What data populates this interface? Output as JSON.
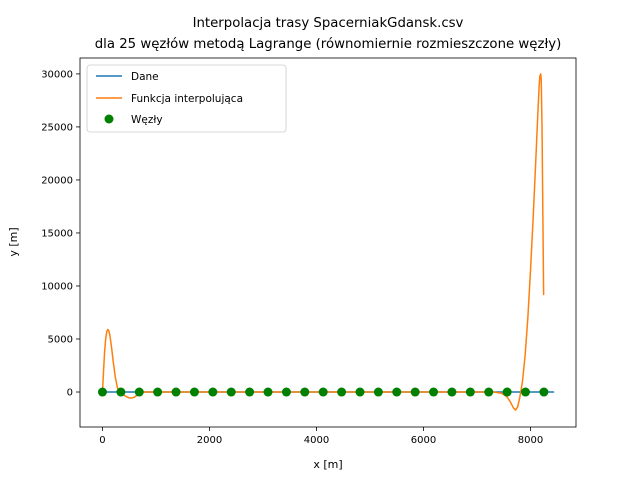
{
  "chart_data": {
    "type": "line",
    "title_lines": [
      "Interpolacja trasy SpacerniakGdansk.csv",
      "dla 25 węzłów metodą  Lagrange (równomiernie rozmieszczone węzły)"
    ],
    "xlabel": "x [m]",
    "ylabel": "y [m]",
    "xlim": [
      -420,
      8850
    ],
    "ylim": [
      -3300,
      31500
    ],
    "x_ticks": [
      0,
      2000,
      4000,
      6000,
      8000
    ],
    "y_ticks": [
      0,
      5000,
      10000,
      15000,
      20000,
      25000,
      30000
    ],
    "grid": false,
    "legend_position": "top-left",
    "series": [
      {
        "name": "Dane",
        "kind": "line",
        "color": "#1f77b4",
        "x": [
          0,
          8430
        ],
        "y": [
          0,
          0
        ]
      },
      {
        "name": "Funkcja interpolująca",
        "kind": "line",
        "color": "#ff7f0e",
        "x": [
          0,
          20,
          40,
          60,
          80,
          100,
          120,
          140,
          170,
          200,
          240,
          280,
          320,
          345,
          400,
          450,
          500,
          550,
          600,
          650,
          690,
          800,
          1000,
          1500,
          3000,
          5000,
          6500,
          7000,
          7300,
          7450,
          7550,
          7620,
          7680,
          7720,
          7760,
          7800,
          7850,
          7900,
          7950,
          8000,
          8050,
          8100,
          8130,
          8160,
          8175,
          8190,
          8200,
          8215,
          8230,
          8245
        ],
        "y": [
          0,
          2000,
          3800,
          5000,
          5700,
          5900,
          5750,
          5300,
          4200,
          2900,
          1400,
          400,
          30,
          0,
          -280,
          -450,
          -550,
          -560,
          -480,
          -280,
          -80,
          0,
          0,
          0,
          0,
          0,
          0,
          0,
          0,
          -100,
          -400,
          -900,
          -1500,
          -1700,
          -1400,
          -500,
          1000,
          3500,
          7000,
          11500,
          16500,
          22000,
          25500,
          28800,
          29800,
          30000,
          29500,
          25000,
          17000,
          9200
        ]
      },
      {
        "name": "Węzły",
        "kind": "scatter",
        "color": "#008000",
        "x": [
          0,
          344,
          688,
          1031,
          1375,
          1719,
          2063,
          2406,
          2750,
          3094,
          3438,
          3781,
          4125,
          4469,
          4813,
          5156,
          5500,
          5844,
          6188,
          6531,
          6875,
          7219,
          7563,
          7906,
          8250
        ],
        "y": [
          0,
          0,
          0,
          0,
          0,
          0,
          0,
          0,
          0,
          0,
          0,
          0,
          0,
          0,
          0,
          0,
          0,
          0,
          0,
          0,
          0,
          0,
          0,
          0,
          0
        ]
      }
    ]
  }
}
